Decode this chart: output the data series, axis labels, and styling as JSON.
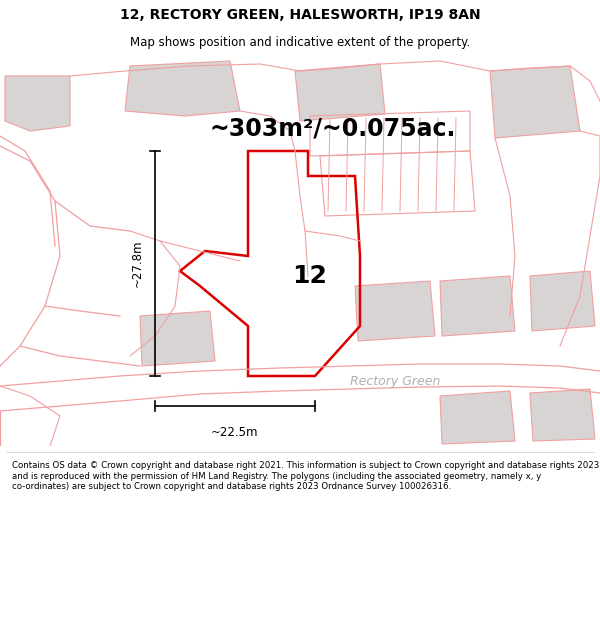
{
  "title_line1": "12, RECTORY GREEN, HALESWORTH, IP19 8AN",
  "title_line2": "Map shows position and indicative extent of the property.",
  "area_text": "~303m²/~0.075ac.",
  "property_number": "12",
  "width_label": "~22.5m",
  "height_label": "~27.8m",
  "road_label": "Rectory Green",
  "footer_text": "Contains OS data © Crown copyright and database right 2021. This information is subject to Crown copyright and database rights 2023 and is reproduced with the permission of HM Land Registry. The polygons (including the associated geometry, namely x, y co-ordinates) are subject to Crown copyright and database rights 2023 Ordnance Survey 100026316.",
  "bg_color": "#ffffff",
  "map_bg_color": "#ffffff",
  "outline_color": "#f0a0a0",
  "highlight_color": "#dd0000",
  "building_color": "#d8d4d4",
  "text_color": "#000000",
  "road_text_color": "#b0b0b0",
  "title_fontsize": 10,
  "subtitle_fontsize": 8.5,
  "area_fontsize": 17,
  "num_fontsize": 18,
  "dim_fontsize": 8.5,
  "road_fontsize": 9,
  "footer_fontsize": 6.2
}
